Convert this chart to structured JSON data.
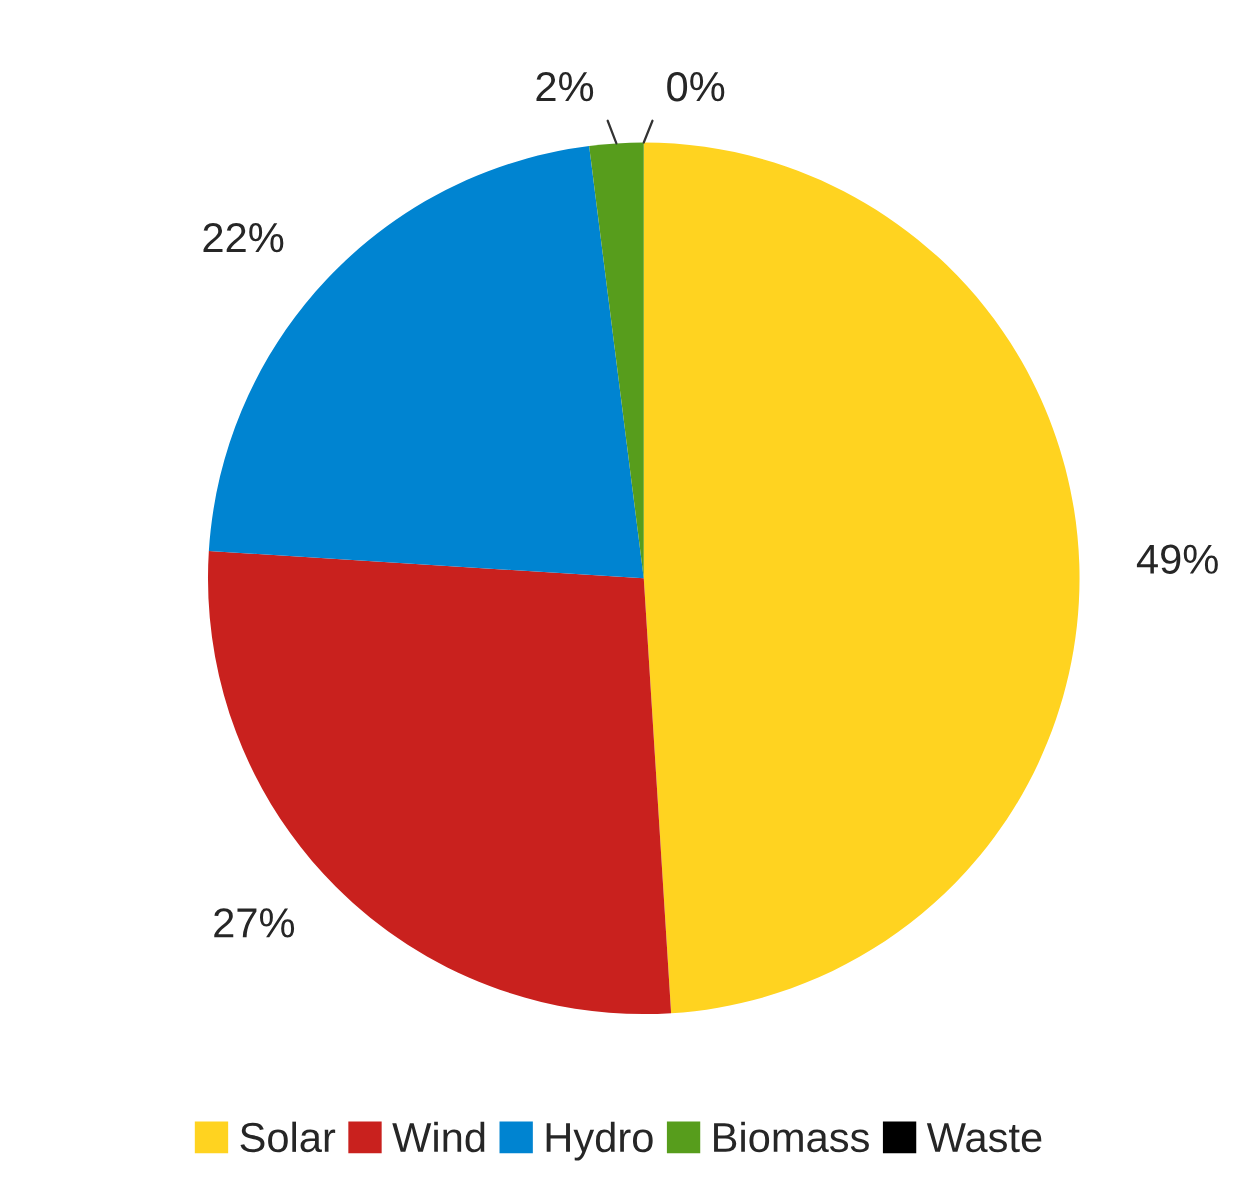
{
  "chart_data": {
    "type": "pie",
    "categories": [
      "Solar",
      "Wind",
      "Hydro",
      "Biomass",
      "Waste"
    ],
    "values": [
      49,
      27,
      22,
      2,
      0
    ],
    "colors": [
      "#ffd320",
      "#c9211e",
      "#0084d1",
      "#579d1c",
      "#000000"
    ],
    "value_labels": [
      "49%",
      "27%",
      "22%",
      "2%",
      "0%"
    ],
    "legend": "bottom"
  }
}
